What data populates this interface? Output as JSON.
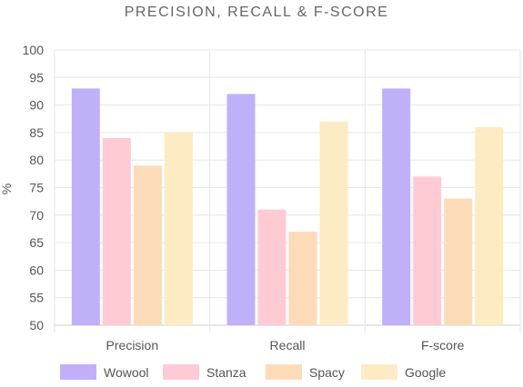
{
  "chart_data": {
    "type": "bar",
    "title": "PRECISION, RECALL & F-SCORE",
    "ylabel": "%",
    "xlabel": "",
    "categories": [
      "Precision",
      "Recall",
      "F-score"
    ],
    "ylim": [
      50,
      100
    ],
    "yticks": [
      50,
      55,
      60,
      65,
      70,
      75,
      80,
      85,
      90,
      95,
      100
    ],
    "grid": true,
    "legend": "bottom",
    "series": [
      {
        "name": "Wowool",
        "values": [
          93,
          92,
          93
        ],
        "color": "#c0b0f8"
      },
      {
        "name": "Stanza",
        "values": [
          84,
          71,
          77
        ],
        "color": "#fecbd4"
      },
      {
        "name": "Spacy",
        "values": [
          79,
          67,
          73
        ],
        "color": "#fcdcb8"
      },
      {
        "name": "Google",
        "values": [
          85,
          87,
          86
        ],
        "color": "#fdebc4"
      }
    ]
  }
}
